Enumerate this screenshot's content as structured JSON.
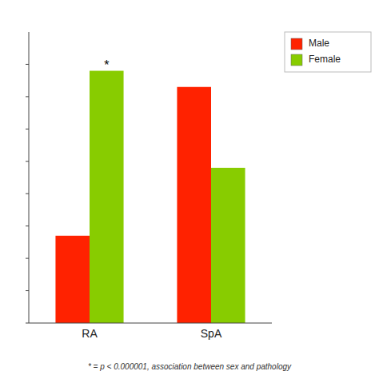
{
  "chart_data": {
    "type": "bar",
    "categories": [
      "RA",
      "SpA"
    ],
    "series": [
      {
        "name": "Male",
        "color": "#ff2200",
        "values": [
          0.27,
          0.73
        ]
      },
      {
        "name": "Female",
        "color": "#88cc00",
        "values": [
          0.78,
          0.48
        ]
      }
    ],
    "ylim": [
      0,
      0.9
    ],
    "yticks": [
      0,
      0.1,
      0.2,
      0.3,
      0.4,
      0.5,
      0.6,
      0.7,
      0.8
    ],
    "tick_labels": "x",
    "grid": false,
    "legend": "upper right",
    "annotations": [
      {
        "text": "*",
        "category": "RA",
        "series": "Female"
      },
      {
        "text": "* = p < 0.000001, association between sex and pathology"
      }
    ]
  }
}
